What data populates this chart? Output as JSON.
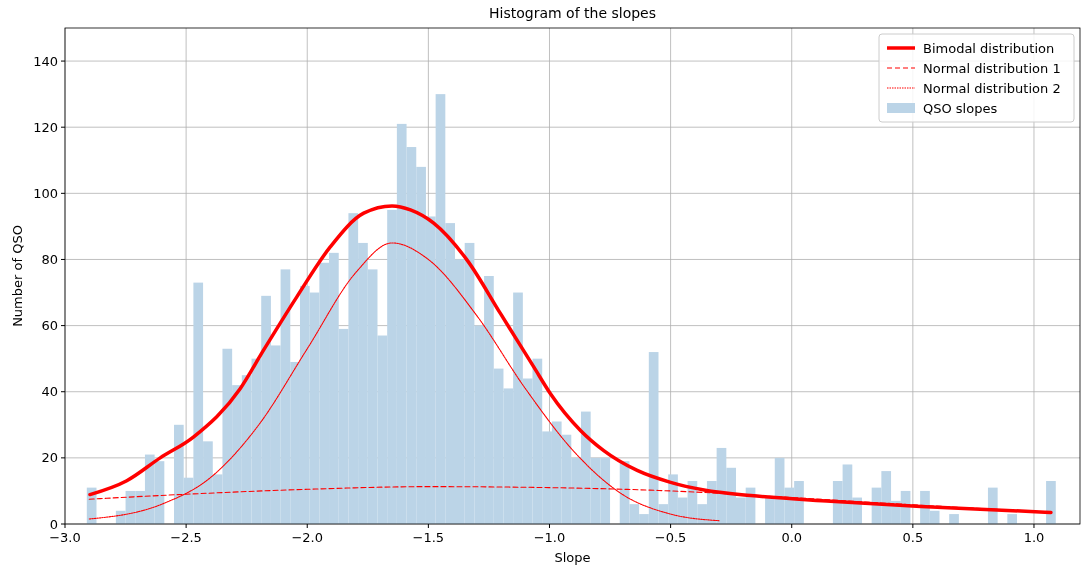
{
  "chart_data": {
    "type": "histogram",
    "title": "Histogram of the slopes",
    "xlabel": "Slope",
    "ylabel": "Number of QSO",
    "bins": [
      -2.91,
      -2.87,
      -2.83,
      -2.79,
      -2.75,
      -2.71,
      -2.67,
      -2.63,
      -2.59,
      -2.55,
      -2.51,
      -2.47,
      -2.43,
      -2.39,
      -2.35,
      -2.31,
      -2.27,
      -2.23,
      -2.19,
      -2.15,
      -2.11,
      -2.07,
      -2.03,
      -1.99,
      -1.95,
      -1.91,
      -1.87,
      -1.83,
      -1.79,
      -1.75,
      -1.71,
      -1.67,
      -1.63,
      -1.59,
      -1.55,
      -1.51,
      -1.47,
      -1.43,
      -1.39,
      -1.35,
      -1.31,
      -1.27,
      -1.23,
      -1.19,
      -1.15,
      -1.11,
      -1.07,
      -1.03,
      -0.99,
      -0.95,
      -0.91,
      -0.87,
      -0.83,
      -0.79,
      -0.75,
      -0.71,
      -0.67,
      -0.63,
      -0.59,
      -0.55,
      -0.51,
      -0.47,
      -0.43,
      -0.39,
      -0.35,
      -0.31,
      -0.27,
      -0.23,
      -0.19,
      -0.15,
      -0.11,
      -0.07,
      -0.03,
      0.01,
      0.05,
      0.09,
      0.13,
      0.17,
      0.21,
      0.25,
      0.29,
      0.33,
      0.37,
      0.41,
      0.45,
      0.49,
      0.53,
      0.57,
      0.61,
      0.65,
      0.69,
      0.73,
      0.77,
      0.81,
      0.85,
      0.89,
      0.93,
      0.97,
      1.01,
      1.05,
      1.09
    ],
    "series": [
      {
        "name": "Bimodal distribution",
        "type": "line",
        "color": "#ff0000",
        "line_style": "solid",
        "x": [
          -2.897,
          -2.745,
          -2.607,
          -2.47,
          -2.277,
          -2.181,
          -2.043,
          -1.905,
          -1.767,
          -1.65,
          -1.574,
          -1.478,
          -1.34,
          -1.202,
          -1.065,
          -0.996,
          -0.872,
          -0.776,
          -0.638,
          -0.5,
          -0.362,
          -0.169,
          0.161,
          0.533,
          1.07
        ],
        "values": [
          8.9,
          13.1,
          20,
          26.3,
          40.9,
          52.5,
          68.7,
          83.8,
          94,
          96.2,
          95,
          91,
          79.8,
          63.6,
          47.5,
          39.4,
          28.3,
          22.2,
          16.2,
          12.6,
          10.3,
          8.6,
          6.9,
          5.3,
          3.5
        ]
      },
      {
        "name": "Normal distribution 1",
        "type": "line",
        "color": "#ff0000",
        "line_style": "dashed",
        "x": [
          -2.9,
          -2.5,
          -2,
          -1.5,
          -1,
          -0.5,
          0,
          0.5,
          1.07
        ],
        "values": [
          7.5,
          9,
          10.5,
          11.3,
          11,
          10,
          8,
          5.8,
          3.6
        ]
      },
      {
        "name": "Normal distribution 2",
        "type": "line",
        "color": "#ff0000",
        "line_style": "dotted",
        "x": [
          -2.9,
          -2.6,
          -2.4,
          -2.2,
          -2,
          -1.8,
          -1.65,
          -1.5,
          -1.3,
          -1.1,
          -0.9,
          -0.7,
          -0.5,
          -0.3
        ],
        "values": [
          1.5,
          6,
          14,
          30,
          53,
          76,
          85,
          80,
          63,
          41,
          22,
          9,
          3,
          1
        ]
      },
      {
        "name": "QSO slopes",
        "color": "#bbd4e7",
        "values": [
          11,
          0,
          0,
          4,
          10,
          10,
          21,
          19,
          0,
          30,
          14,
          73,
          25,
          15,
          53,
          42,
          45,
          50,
          69,
          54,
          77,
          49,
          72,
          70,
          79,
          82,
          59,
          94,
          85,
          77,
          57,
          95,
          121,
          114,
          108,
          93,
          130,
          91,
          80,
          85,
          60,
          75,
          47,
          41,
          70,
          44,
          50,
          28,
          31,
          27,
          20,
          34,
          20,
          20,
          0,
          19,
          6,
          3,
          52,
          6,
          15,
          8,
          13,
          6,
          13,
          23,
          17,
          8,
          11,
          0,
          8,
          20,
          11,
          13,
          0,
          0,
          0,
          13,
          18,
          8,
          0,
          11,
          16,
          7,
          10,
          0,
          10,
          4,
          0,
          3,
          0,
          0,
          0,
          11,
          0,
          3,
          0,
          0,
          0,
          13
        ]
      }
    ],
    "xlim": [
      -3,
      1.19
    ],
    "ylim": [
      0,
      150
    ],
    "xticks": [
      {
        "value": -3,
        "label": "−3.0"
      },
      {
        "value": -2.5,
        "label": "−2.5"
      },
      {
        "value": -2,
        "label": "−2.0"
      },
      {
        "value": -1.5,
        "label": "−1.5"
      },
      {
        "value": -1,
        "label": "−1.0"
      },
      {
        "value": -0.5,
        "label": "−0.5"
      },
      {
        "value": 0,
        "label": "0.0"
      },
      {
        "value": 0.5,
        "label": "0.5"
      },
      {
        "value": 1,
        "label": "1.0"
      }
    ],
    "yticks": [
      0,
      20,
      40,
      60,
      80,
      100,
      120,
      140
    ],
    "grid": true,
    "legend": "top right"
  }
}
